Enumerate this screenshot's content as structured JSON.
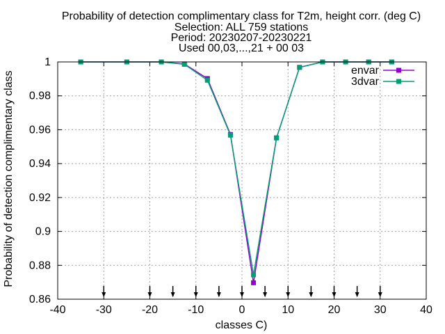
{
  "chart_data": {
    "type": "line",
    "title_lines": [
      "Probability of detection complimentary class  for T2m, height corr. (deg C)",
      "Selection: ALL    759 stations",
      "Period: 20230207-20230221",
      "Used 00,03,...,21 + 00 03"
    ],
    "xlabel": "classes C)",
    "ylabel": "Probability of detection complimentary class",
    "xlim": [
      -40,
      40
    ],
    "ylim": [
      0.86,
      1.0
    ],
    "x_ticks": [
      -40,
      -30,
      -20,
      -10,
      0,
      10,
      20,
      30,
      40
    ],
    "y_ticks": [
      0.86,
      0.88,
      0.9,
      0.92,
      0.94,
      0.96,
      0.98,
      1.0
    ],
    "y_tick_labels": [
      "0.86",
      "0.88",
      "0.9",
      "0.92",
      "0.94",
      "0.96",
      "0.98",
      "1"
    ],
    "grid": true,
    "legend_position": "top-right",
    "class_marker_x": [
      -30,
      -20,
      -15,
      -10,
      -5,
      0,
      5,
      10,
      15,
      20,
      25,
      30
    ],
    "series": [
      {
        "name": "envar",
        "color": "#9400d3",
        "x": [
          -35,
          -25,
          -17.5,
          -12.5,
          -7.5,
          -2.5,
          2.5,
          7.5,
          12.5,
          17.5,
          22.5,
          27.5,
          32.5
        ],
        "y": [
          1.0,
          1.0,
          1.0,
          0.9988,
          0.9902,
          0.9572,
          0.8697,
          0.9552,
          0.9968,
          1.0,
          1.0,
          1.0,
          1.0
        ]
      },
      {
        "name": "3dvar",
        "color": "#009e73",
        "x": [
          -35,
          -25,
          -17.5,
          -12.5,
          -7.5,
          -2.5,
          2.5,
          7.5,
          12.5,
          17.5,
          22.5,
          27.5,
          32.5
        ],
        "y": [
          1.0,
          1.0,
          1.0,
          0.9986,
          0.9892,
          0.9568,
          0.8744,
          0.9552,
          0.9968,
          1.0,
          1.0,
          1.0,
          1.0
        ]
      }
    ]
  }
}
